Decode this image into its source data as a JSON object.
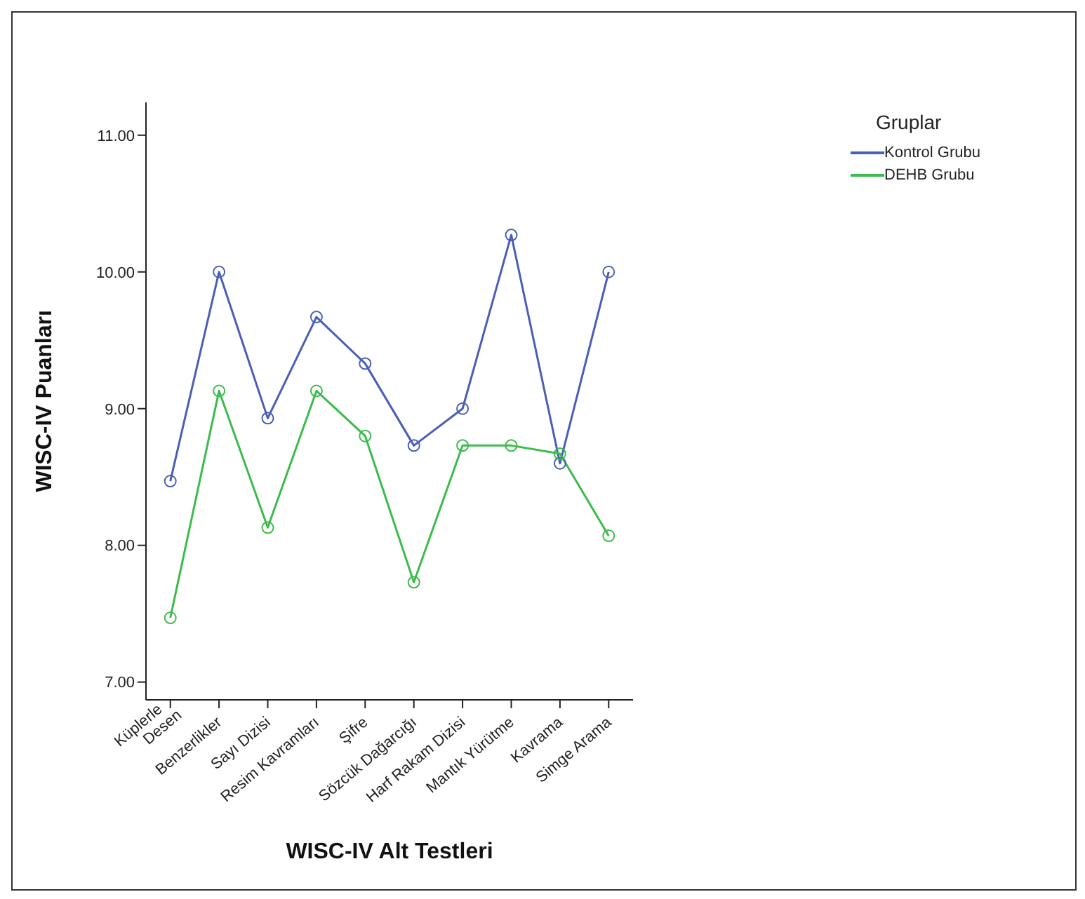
{
  "chart_data": {
    "type": "line",
    "xlabel": "WISC-IV Alt Testleri",
    "ylabel": "WISC-IV Puanları",
    "legend_title": "Gruplar",
    "categories": [
      "Küplerle Desen",
      "Benzerlikler",
      "Sayı Dizisi",
      "Resim Kavramları",
      "Şifre",
      "Sözcük Dağarcığı",
      "Harf Rakam Dizisi",
      "Mantık Yürütme",
      "Kavrama",
      "Simge Arama"
    ],
    "series": [
      {
        "name": "Kontrol Grubu",
        "color": "#4a5fb5",
        "values": [
          8.47,
          10.0,
          8.93,
          9.67,
          9.33,
          8.73,
          9.0,
          10.27,
          8.6,
          10.0
        ]
      },
      {
        "name": "DEHB Grubu",
        "color": "#3dbb4c",
        "values": [
          7.47,
          9.13,
          8.13,
          9.13,
          8.8,
          7.73,
          8.73,
          8.73,
          8.67,
          8.07
        ]
      }
    ],
    "ylim": [
      6.87,
      11.24
    ],
    "yticks": [
      {
        "value": 7,
        "label": "7.00"
      },
      {
        "value": 8,
        "label": "8.00"
      },
      {
        "value": 9,
        "label": "9.00"
      },
      {
        "value": 10,
        "label": "10.00"
      },
      {
        "value": 11,
        "label": "11.00"
      }
    ],
    "grid": false,
    "legend": "top right",
    "marker": "circle",
    "line_style": "solid"
  }
}
